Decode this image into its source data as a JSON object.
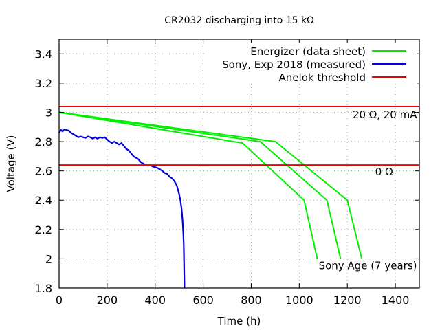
{
  "chart_data": {
    "type": "line",
    "title": "CR2032 discharging into 15 kΩ",
    "xlabel": "Time (h)",
    "ylabel": "Voltage (V)",
    "xlim": [
      0,
      1500
    ],
    "ylim": [
      1.8,
      3.5
    ],
    "xticks": [
      "0",
      "200",
      "400",
      "600",
      "800",
      "1000",
      "1200",
      "1400"
    ],
    "xtick_values": [
      0,
      200,
      400,
      600,
      800,
      1000,
      1200,
      1400
    ],
    "yticks": [
      "1.8",
      "2",
      "2.2",
      "2.4",
      "2.6",
      "2.8",
      "3",
      "3.2",
      "3.4"
    ],
    "ytick_values": [
      1.8,
      2.0,
      2.2,
      2.4,
      2.6,
      2.8,
      3.0,
      3.2,
      3.4
    ],
    "grid": true,
    "legend_position": "top-right",
    "legend": [
      {
        "label": "Energizer (data sheet)",
        "color": "#00ee00"
      },
      {
        "label": "Sony, Exp 2018 (measured)",
        "color": "#0000dd"
      },
      {
        "label": "Anelok threshold",
        "color": "#ee0000"
      }
    ],
    "series": [
      {
        "name": "Energizer (data sheet)",
        "color": "#00ee00",
        "curves": [
          {
            "x": [
              0,
              764,
              1020,
              1075
            ],
            "y": [
              3.0,
              2.79,
              2.4,
              2.0
            ]
          },
          {
            "x": [
              0,
              838,
              1115,
              1172
            ],
            "y": [
              3.0,
              2.8,
              2.4,
              2.0
            ]
          },
          {
            "x": [
              0,
              901,
              1200,
              1260
            ],
            "y": [
              3.0,
              2.8,
              2.4,
              2.0
            ]
          }
        ]
      },
      {
        "name": "Sony, Exp 2018 (measured)",
        "color": "#0000dd",
        "x": [
          0,
          8,
          15,
          22,
          30,
          40,
          50,
          60,
          70,
          80,
          90,
          100,
          110,
          120,
          130,
          140,
          150,
          160,
          170,
          180,
          190,
          200,
          210,
          220,
          230,
          240,
          250,
          260,
          270,
          280,
          290,
          300,
          310,
          320,
          330,
          340,
          350,
          360,
          370,
          380,
          390,
          400,
          410,
          420,
          430,
          440,
          450,
          460,
          470,
          480,
          490,
          500,
          505,
          510,
          514,
          517,
          519,
          520,
          521,
          522
        ],
        "y": [
          2.86,
          2.88,
          2.87,
          2.885,
          2.88,
          2.875,
          2.86,
          2.85,
          2.84,
          2.83,
          2.835,
          2.83,
          2.825,
          2.835,
          2.83,
          2.82,
          2.83,
          2.82,
          2.83,
          2.825,
          2.83,
          2.815,
          2.8,
          2.79,
          2.8,
          2.79,
          2.78,
          2.79,
          2.77,
          2.75,
          2.74,
          2.72,
          2.7,
          2.69,
          2.68,
          2.66,
          2.65,
          2.64,
          2.635,
          2.64,
          2.63,
          2.625,
          2.62,
          2.61,
          2.6,
          2.585,
          2.58,
          2.56,
          2.55,
          2.53,
          2.5,
          2.44,
          2.4,
          2.34,
          2.26,
          2.18,
          2.1,
          2.0,
          1.9,
          1.8
        ]
      },
      {
        "name": "Anelok threshold",
        "color": "#ee0000",
        "lines": [
          {
            "y": 3.04,
            "x": [
              0,
              1500
            ]
          },
          {
            "y": 2.64,
            "x": [
              0,
              1500
            ]
          }
        ]
      }
    ],
    "annotations": [
      {
        "text": "20 Ω, 20 mA",
        "x": 1490,
        "y": 2.96
      },
      {
        "text": "0 Ω",
        "x": 1390,
        "y": 2.57
      },
      {
        "text": "Sony Age (7 years)",
        "x": 1490,
        "y": 1.93
      }
    ]
  }
}
